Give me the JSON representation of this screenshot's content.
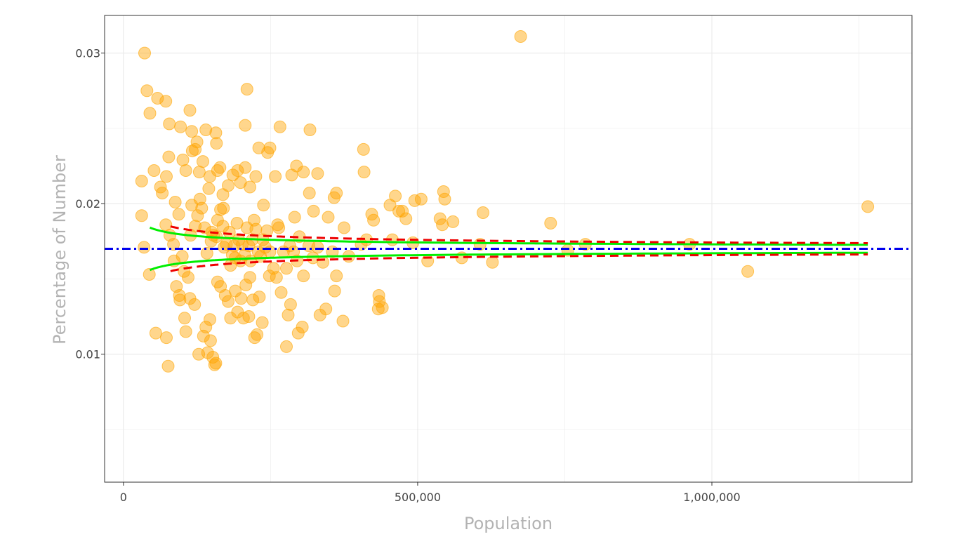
{
  "chart_data": {
    "type": "scatter",
    "title": "",
    "xlabel": "Population",
    "ylabel": "Percentage of Number",
    "xlim": [
      -32000,
      1340000
    ],
    "ylim": [
      0.0015,
      0.0325
    ],
    "grid": true,
    "legend": "none",
    "x_ticks": [
      {
        "value": 0,
        "label": "0"
      },
      {
        "value": 500000,
        "label": "500,000"
      },
      {
        "value": 1000000,
        "label": "1,000,000"
      }
    ],
    "y_ticks": [
      {
        "value": 0.01,
        "label": "0.01"
      },
      {
        "value": 0.02,
        "label": "0.02"
      },
      {
        "value": 0.03,
        "label": "0.03"
      }
    ],
    "colors": {
      "points": "#FFA500",
      "limit_inner": "#00EE00",
      "limit_outer": "#EE0000",
      "mean": "#0000EE",
      "grid": "#EBEBEB",
      "axis_line": "#333333",
      "axis_title": "#B3B3B3"
    },
    "mean_line": {
      "name": "Mean",
      "y": 0.017
    },
    "limits": {
      "inner_k": 2.31,
      "outer_k": 3.25,
      "x_start_inner": 45000,
      "x_start_outer": 80000,
      "x_end": 1265000
    },
    "points": [
      [
        36000,
        0.03
      ],
      [
        40000,
        0.0275
      ],
      [
        45000,
        0.026
      ],
      [
        58000,
        0.027
      ],
      [
        72000,
        0.0268
      ],
      [
        78000,
        0.0253
      ],
      [
        97000,
        0.0251
      ],
      [
        113000,
        0.0262
      ],
      [
        116000,
        0.0248
      ],
      [
        125000,
        0.0241
      ],
      [
        140000,
        0.0249
      ],
      [
        157000,
        0.0247
      ],
      [
        158000,
        0.024
      ],
      [
        210000,
        0.0276
      ],
      [
        207000,
        0.0252
      ],
      [
        266000,
        0.0251
      ],
      [
        317000,
        0.0249
      ],
      [
        675000,
        0.0311
      ],
      [
        31000,
        0.0215
      ],
      [
        52000,
        0.0222
      ],
      [
        63000,
        0.0211
      ],
      [
        73000,
        0.0218
      ],
      [
        77000,
        0.0231
      ],
      [
        88000,
        0.0201
      ],
      [
        94000,
        0.0193
      ],
      [
        101000,
        0.0229
      ],
      [
        106000,
        0.0222
      ],
      [
        117000,
        0.0235
      ],
      [
        122000,
        0.0236
      ],
      [
        129000,
        0.0221
      ],
      [
        135000,
        0.0228
      ],
      [
        147000,
        0.0218
      ],
      [
        160000,
        0.0222
      ],
      [
        164000,
        0.0224
      ],
      [
        169000,
        0.0206
      ],
      [
        178000,
        0.0212
      ],
      [
        186000,
        0.0219
      ],
      [
        194000,
        0.0222
      ],
      [
        199000,
        0.0214
      ],
      [
        207000,
        0.0224
      ],
      [
        215000,
        0.0211
      ],
      [
        225000,
        0.0218
      ],
      [
        230000,
        0.0237
      ],
      [
        245000,
        0.0234
      ],
      [
        249000,
        0.0237
      ],
      [
        258000,
        0.0218
      ],
      [
        286000,
        0.0219
      ],
      [
        294000,
        0.0225
      ],
      [
        306000,
        0.0221
      ],
      [
        316000,
        0.0207
      ],
      [
        330000,
        0.022
      ],
      [
        358000,
        0.0204
      ],
      [
        362000,
        0.0207
      ],
      [
        375000,
        0.0184
      ],
      [
        408000,
        0.0236
      ],
      [
        409000,
        0.0221
      ],
      [
        422000,
        0.0193
      ],
      [
        425000,
        0.0189
      ],
      [
        453000,
        0.0199
      ],
      [
        462000,
        0.0205
      ],
      [
        468000,
        0.0195
      ],
      [
        474000,
        0.0195
      ],
      [
        480000,
        0.019
      ],
      [
        495000,
        0.0202
      ],
      [
        506000,
        0.0203
      ],
      [
        538000,
        0.019
      ],
      [
        542000,
        0.0186
      ],
      [
        544000,
        0.0208
      ],
      [
        546000,
        0.0203
      ],
      [
        560000,
        0.0188
      ],
      [
        611000,
        0.0194
      ],
      [
        726000,
        0.0187
      ],
      [
        1265000,
        0.0198
      ],
      [
        31000,
        0.0192
      ],
      [
        35000,
        0.0171
      ],
      [
        44000,
        0.0153
      ],
      [
        66000,
        0.0207
      ],
      [
        72000,
        0.0186
      ],
      [
        79000,
        0.0179
      ],
      [
        85000,
        0.0173
      ],
      [
        86000,
        0.0162
      ],
      [
        90000,
        0.0145
      ],
      [
        95000,
        0.0139
      ],
      [
        100000,
        0.0165
      ],
      [
        103000,
        0.0155
      ],
      [
        110000,
        0.0151
      ],
      [
        114000,
        0.0179
      ],
      [
        122000,
        0.0185
      ],
      [
        126000,
        0.0192
      ],
      [
        133000,
        0.0197
      ],
      [
        138000,
        0.0184
      ],
      [
        142000,
        0.0167
      ],
      [
        149000,
        0.0175
      ],
      [
        150000,
        0.0181
      ],
      [
        153000,
        0.0179
      ],
      [
        158000,
        0.0178
      ],
      [
        160000,
        0.0189
      ],
      [
        165000,
        0.0196
      ],
      [
        169000,
        0.0185
      ],
      [
        171000,
        0.0171
      ],
      [
        175000,
        0.0173
      ],
      [
        180000,
        0.0181
      ],
      [
        182000,
        0.0159
      ],
      [
        185000,
        0.0166
      ],
      [
        188000,
        0.0172
      ],
      [
        190000,
        0.0164
      ],
      [
        193000,
        0.0187
      ],
      [
        196000,
        0.0176
      ],
      [
        199000,
        0.0162
      ],
      [
        202000,
        0.0173
      ],
      [
        206000,
        0.0166
      ],
      [
        210000,
        0.0184
      ],
      [
        213000,
        0.0172
      ],
      [
        216000,
        0.0162
      ],
      [
        219000,
        0.0176
      ],
      [
        222000,
        0.0189
      ],
      [
        225000,
        0.0183
      ],
      [
        229000,
        0.0168
      ],
      [
        233000,
        0.0165
      ],
      [
        237000,
        0.0176
      ],
      [
        241000,
        0.0171
      ],
      [
        244000,
        0.0182
      ],
      [
        249000,
        0.0168
      ],
      [
        255000,
        0.0157
      ],
      [
        260000,
        0.0151
      ],
      [
        264000,
        0.0184
      ],
      [
        272000,
        0.0168
      ],
      [
        277000,
        0.0157
      ],
      [
        283000,
        0.0172
      ],
      [
        289000,
        0.0168
      ],
      [
        295000,
        0.0162
      ],
      [
        299000,
        0.0178
      ],
      [
        306000,
        0.0152
      ],
      [
        315000,
        0.0172
      ],
      [
        322000,
        0.0164
      ],
      [
        330000,
        0.0171
      ],
      [
        339000,
        0.0161
      ],
      [
        355000,
        0.0168
      ],
      [
        362000,
        0.0152
      ],
      [
        383000,
        0.0165
      ],
      [
        404000,
        0.0173
      ],
      [
        413000,
        0.0176
      ],
      [
        457000,
        0.0176
      ],
      [
        492000,
        0.0174
      ],
      [
        517000,
        0.0162
      ],
      [
        575000,
        0.0164
      ],
      [
        606000,
        0.0173
      ],
      [
        627000,
        0.0161
      ],
      [
        755000,
        0.0169
      ],
      [
        785000,
        0.0173
      ],
      [
        962000,
        0.0173
      ],
      [
        1061000,
        0.0155
      ],
      [
        55000,
        0.0114
      ],
      [
        73000,
        0.0111
      ],
      [
        76000,
        0.0092
      ],
      [
        96000,
        0.0136
      ],
      [
        104000,
        0.0124
      ],
      [
        106000,
        0.0115
      ],
      [
        113000,
        0.0137
      ],
      [
        121000,
        0.0133
      ],
      [
        128000,
        0.01
      ],
      [
        136000,
        0.0112
      ],
      [
        140000,
        0.0118
      ],
      [
        143000,
        0.0101
      ],
      [
        147000,
        0.0123
      ],
      [
        148000,
        0.0109
      ],
      [
        152000,
        0.0098
      ],
      [
        155000,
        0.0093
      ],
      [
        157000,
        0.0094
      ],
      [
        160000,
        0.0148
      ],
      [
        165000,
        0.0145
      ],
      [
        173000,
        0.0139
      ],
      [
        178000,
        0.0135
      ],
      [
        182000,
        0.0124
      ],
      [
        190000,
        0.0142
      ],
      [
        194000,
        0.0128
      ],
      [
        200000,
        0.0137
      ],
      [
        204000,
        0.0124
      ],
      [
        208000,
        0.0146
      ],
      [
        213000,
        0.0125
      ],
      [
        215000,
        0.0151
      ],
      [
        220000,
        0.0136
      ],
      [
        223000,
        0.0111
      ],
      [
        227000,
        0.0113
      ],
      [
        231000,
        0.0138
      ],
      [
        236000,
        0.0121
      ],
      [
        248000,
        0.0152
      ],
      [
        268000,
        0.0141
      ],
      [
        277000,
        0.0105
      ],
      [
        280000,
        0.0126
      ],
      [
        284000,
        0.0133
      ],
      [
        297000,
        0.0114
      ],
      [
        304000,
        0.0118
      ],
      [
        334000,
        0.0126
      ],
      [
        344000,
        0.013
      ],
      [
        359000,
        0.0142
      ],
      [
        373000,
        0.0122
      ],
      [
        433000,
        0.013
      ],
      [
        434000,
        0.0139
      ],
      [
        435000,
        0.0135
      ],
      [
        440000,
        0.0131
      ],
      [
        116000,
        0.0199
      ],
      [
        130000,
        0.0203
      ],
      [
        145000,
        0.021
      ],
      [
        170000,
        0.0197
      ],
      [
        238000,
        0.0199
      ],
      [
        262000,
        0.0186
      ],
      [
        291000,
        0.0191
      ],
      [
        323000,
        0.0195
      ],
      [
        348000,
        0.0191
      ]
    ]
  }
}
